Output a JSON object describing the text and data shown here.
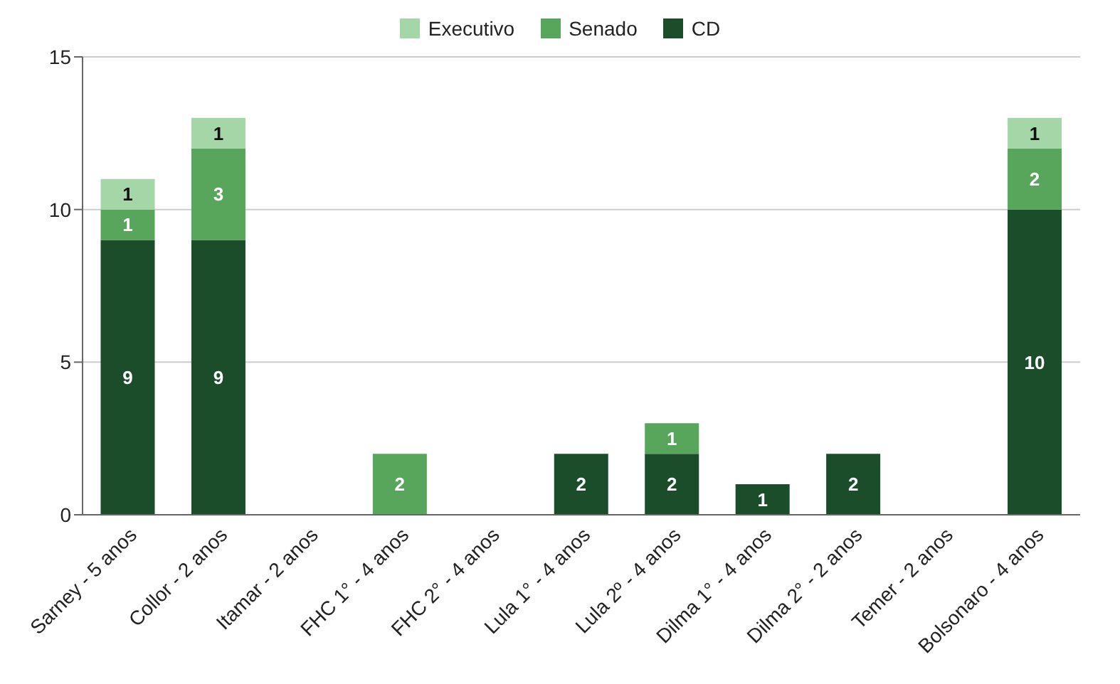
{
  "chart_data": {
    "type": "bar",
    "stacked": true,
    "categories": [
      "Sarney - 5 anos",
      "Collor - 2 anos",
      "Itamar - 2 anos",
      "FHC 1° - 4 anos",
      "FHC 2° - 4 anos",
      "Lula 1° - 4 anos",
      "Lula 2º - 4 anos",
      "Dilma 1° - 4 anos",
      "Dilma 2° - 2 anos",
      "Temer - 2 anos",
      "Bolsonaro - 4 anos"
    ],
    "series": [
      {
        "name": "CD",
        "color": "#1b4d2a",
        "values": [
          9,
          9,
          null,
          null,
          null,
          2,
          2,
          1,
          2,
          null,
          10
        ]
      },
      {
        "name": "Senado",
        "color": "#58a65c",
        "values": [
          1,
          3,
          null,
          2,
          null,
          null,
          1,
          null,
          null,
          null,
          2
        ]
      },
      {
        "name": "Executivo",
        "color": "#a5d6a7",
        "values": [
          1,
          1,
          null,
          null,
          null,
          null,
          null,
          null,
          null,
          null,
          1
        ]
      }
    ],
    "ylim": [
      0,
      15
    ],
    "yticks": [
      0,
      5,
      10,
      15
    ],
    "grid": "y",
    "legend": "top",
    "data_labels": true
  }
}
